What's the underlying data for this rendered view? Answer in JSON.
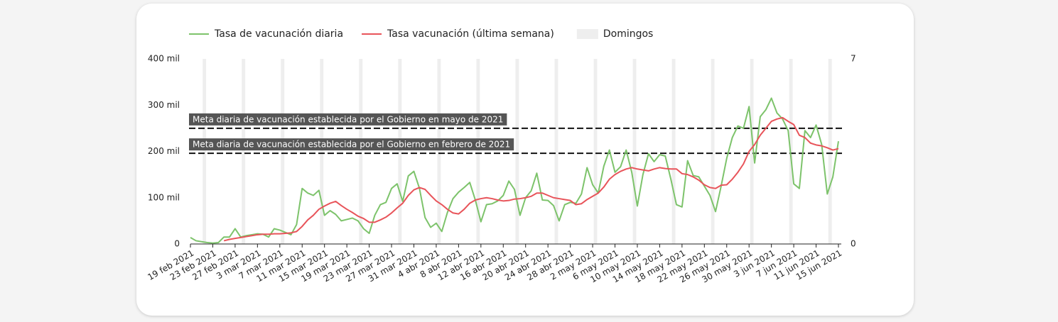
{
  "chart_data": {
    "type": "line",
    "x": [
      "2021-02-19",
      "2021-02-20",
      "2021-02-21",
      "2021-02-22",
      "2021-02-23",
      "2021-02-24",
      "2021-02-25",
      "2021-02-26",
      "2021-02-27",
      "2021-02-28",
      "2021-03-01",
      "2021-03-02",
      "2021-03-03",
      "2021-03-04",
      "2021-03-05",
      "2021-03-06",
      "2021-03-07",
      "2021-03-08",
      "2021-03-09",
      "2021-03-10",
      "2021-03-11",
      "2021-03-12",
      "2021-03-13",
      "2021-03-14",
      "2021-03-15",
      "2021-03-16",
      "2021-03-17",
      "2021-03-18",
      "2021-03-19",
      "2021-03-20",
      "2021-03-21",
      "2021-03-22",
      "2021-03-23",
      "2021-03-24",
      "2021-03-25",
      "2021-03-26",
      "2021-03-27",
      "2021-03-28",
      "2021-03-29",
      "2021-03-30",
      "2021-03-31",
      "2021-04-01",
      "2021-04-02",
      "2021-04-03",
      "2021-04-04",
      "2021-04-05",
      "2021-04-06",
      "2021-04-07",
      "2021-04-08",
      "2021-04-09",
      "2021-04-10",
      "2021-04-11",
      "2021-04-12",
      "2021-04-13",
      "2021-04-14",
      "2021-04-15",
      "2021-04-16",
      "2021-04-17",
      "2021-04-18",
      "2021-04-19",
      "2021-04-20",
      "2021-04-21",
      "2021-04-22",
      "2021-04-23",
      "2021-04-24",
      "2021-04-25",
      "2021-04-26",
      "2021-04-27",
      "2021-04-28",
      "2021-04-29",
      "2021-04-30",
      "2021-05-01",
      "2021-05-02",
      "2021-05-03",
      "2021-05-04",
      "2021-05-05",
      "2021-05-06",
      "2021-05-07",
      "2021-05-08",
      "2021-05-09",
      "2021-05-10",
      "2021-05-11",
      "2021-05-12",
      "2021-05-13",
      "2021-05-14",
      "2021-05-15",
      "2021-05-16",
      "2021-05-17",
      "2021-05-18",
      "2021-05-19",
      "2021-05-20",
      "2021-05-21",
      "2021-05-22",
      "2021-05-23",
      "2021-05-24",
      "2021-05-25",
      "2021-05-26",
      "2021-05-27",
      "2021-05-28",
      "2021-05-29",
      "2021-05-30",
      "2021-05-31",
      "2021-06-01",
      "2021-06-02",
      "2021-06-03",
      "2021-06-04",
      "2021-06-05",
      "2021-06-06",
      "2021-06-07",
      "2021-06-08",
      "2021-06-09",
      "2021-06-10",
      "2021-06-11",
      "2021-06-12",
      "2021-06-13",
      "2021-06-14",
      "2021-06-15"
    ],
    "series": [
      {
        "name": "Tasa de vacunación diaria",
        "color": "#7dc36b",
        "values": [
          14000,
          7000,
          5000,
          3000,
          2000,
          3000,
          15000,
          15000,
          33000,
          15000,
          18000,
          20000,
          22000,
          21000,
          15000,
          33000,
          30000,
          25000,
          20000,
          42000,
          120000,
          110000,
          105000,
          116000,
          62000,
          72000,
          64000,
          50000,
          53000,
          56000,
          50000,
          33000,
          23000,
          62000,
          85000,
          90000,
          120000,
          130000,
          92000,
          147000,
          157000,
          120000,
          57000,
          36000,
          45000,
          27000,
          68000,
          98000,
          112000,
          122000,
          133000,
          95000,
          48000,
          85000,
          87000,
          93000,
          105000,
          136000,
          118000,
          62000,
          100000,
          115000,
          153000,
          95000,
          94000,
          83000,
          50000,
          85000,
          90000,
          88000,
          108000,
          165000,
          128000,
          110000,
          168000,
          203000,
          155000,
          167000,
          203000,
          155000,
          82000,
          150000,
          195000,
          178000,
          193000,
          190000,
          140000,
          85000,
          80000,
          180000,
          148000,
          145000,
          125000,
          105000,
          70000,
          125000,
          185000,
          230000,
          255000,
          250000,
          297000,
          175000,
          275000,
          290000,
          315000,
          283000,
          270000,
          245000,
          130000,
          120000,
          245000,
          230000,
          257000,
          215000,
          108000,
          145000,
          222000
        ]
      },
      {
        "name": "Tasa vacunación (última semana)",
        "color": "#e8545a",
        "values": [
          null,
          null,
          null,
          null,
          null,
          null,
          7000,
          10000,
          12000,
          14000,
          16000,
          18000,
          20000,
          21000,
          21000,
          22000,
          22000,
          23000,
          24000,
          27000,
          38000,
          52000,
          62000,
          75000,
          82000,
          88000,
          92000,
          83000,
          75000,
          68000,
          60000,
          55000,
          47000,
          47000,
          52000,
          58000,
          67000,
          78000,
          88000,
          105000,
          117000,
          122000,
          118000,
          105000,
          93000,
          85000,
          75000,
          67000,
          65000,
          75000,
          88000,
          95000,
          98000,
          100000,
          98000,
          95000,
          93000,
          94000,
          97000,
          98000,
          100000,
          103000,
          110000,
          110000,
          105000,
          100000,
          98000,
          96000,
          94000,
          85000,
          87000,
          96000,
          103000,
          110000,
          123000,
          140000,
          150000,
          157000,
          162000,
          165000,
          162000,
          160000,
          158000,
          162000,
          165000,
          163000,
          162000,
          162000,
          152000,
          150000,
          145000,
          138000,
          128000,
          122000,
          120000,
          127000,
          128000,
          140000,
          155000,
          173000,
          200000,
          215000,
          235000,
          250000,
          265000,
          270000,
          273000,
          265000,
          258000,
          235000,
          230000,
          218000,
          214000,
          212000,
          208000,
          203000,
          206000
        ]
      }
    ],
    "bands": {
      "name": "Domingos",
      "color": "#eeeeee",
      "x": [
        "2021-02-21",
        "2021-02-28",
        "2021-03-07",
        "2021-03-14",
        "2021-03-21",
        "2021-03-28",
        "2021-04-04",
        "2021-04-11",
        "2021-04-18",
        "2021-04-25",
        "2021-05-02",
        "2021-05-09",
        "2021-05-16",
        "2021-05-23",
        "2021-05-30",
        "2021-06-06",
        "2021-06-13"
      ]
    },
    "annotations": [
      {
        "label": "Meta diaria de vacunación establecida por el Gobierno en mayo de 2021",
        "value": 250000
      },
      {
        "label": "Meta diaria de vacunación establecida por el Gobierno en febrero de 2021",
        "value": 196000
      }
    ],
    "xlim": [
      "2021-02-19",
      "2021-06-15"
    ],
    "xticks": [
      {
        "value": "2021-02-19",
        "label": "19 feb 2021"
      },
      {
        "value": "2021-02-23",
        "label": "23 feb 2021"
      },
      {
        "value": "2021-02-27",
        "label": "27 feb 2021"
      },
      {
        "value": "2021-03-03",
        "label": "3 mar 2021"
      },
      {
        "value": "2021-03-07",
        "label": "7 mar 2021"
      },
      {
        "value": "2021-03-11",
        "label": "11 mar 2021"
      },
      {
        "value": "2021-03-15",
        "label": "15 mar 2021"
      },
      {
        "value": "2021-03-19",
        "label": "19 mar 2021"
      },
      {
        "value": "2021-03-23",
        "label": "23 mar 2021"
      },
      {
        "value": "2021-03-27",
        "label": "27 mar 2021"
      },
      {
        "value": "2021-03-31",
        "label": "31 mar 2021"
      },
      {
        "value": "2021-04-04",
        "label": "4 abr 2021"
      },
      {
        "value": "2021-04-08",
        "label": "8 abr 2021"
      },
      {
        "value": "2021-04-12",
        "label": "12 abr 2021"
      },
      {
        "value": "2021-04-16",
        "label": "16 abr 2021"
      },
      {
        "value": "2021-04-20",
        "label": "20 abr 2021"
      },
      {
        "value": "2021-04-24",
        "label": "24 abr 2021"
      },
      {
        "value": "2021-04-28",
        "label": "28 abr 2021"
      },
      {
        "value": "2021-05-02",
        "label": "2 may 2021"
      },
      {
        "value": "2021-05-06",
        "label": "6 may 2021"
      },
      {
        "value": "2021-05-10",
        "label": "10 may 2021"
      },
      {
        "value": "2021-05-14",
        "label": "14 may 2021"
      },
      {
        "value": "2021-05-18",
        "label": "18 may 2021"
      },
      {
        "value": "2021-05-22",
        "label": "22 may 2021"
      },
      {
        "value": "2021-05-26",
        "label": "26 may 2021"
      },
      {
        "value": "2021-05-30",
        "label": "30 may 2021"
      },
      {
        "value": "2021-06-03",
        "label": "3 jun 2021"
      },
      {
        "value": "2021-06-07",
        "label": "7 jun 2021"
      },
      {
        "value": "2021-06-11",
        "label": "11 jun 2021"
      },
      {
        "value": "2021-06-15",
        "label": "15 jun 2021"
      }
    ],
    "ylim": [
      0,
      400000
    ],
    "yticks": [
      0,
      {
        "value": 100000,
        "label": "100 mil"
      },
      {
        "value": 200000,
        "label": "200 mil"
      },
      {
        "value": 300000,
        "label": "300 mil"
      },
      {
        "value": 400000,
        "label": "400 mil"
      }
    ],
    "y2lim": [
      0,
      7
    ],
    "y2ticks": [
      0,
      7
    ],
    "legend": "top-left"
  }
}
